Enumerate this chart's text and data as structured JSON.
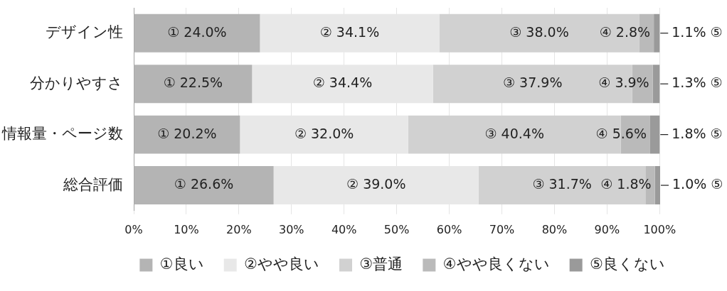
{
  "chart_data": {
    "type": "bar",
    "orientation": "horizontal",
    "stacked": true,
    "categories": [
      "デザイン性",
      "分かりやすさ",
      "情報量・ページ数",
      "総合評価"
    ],
    "series": [
      {
        "name": "①良い",
        "color": "#b4b4b4",
        "values": [
          24.0,
          22.5,
          20.2,
          26.6
        ],
        "value_labels": [
          "① 24.0%",
          "① 22.5%",
          "① 20.2%",
          "① 26.6%"
        ]
      },
      {
        "name": "②やや良い",
        "color": "#e8e8e8",
        "values": [
          34.1,
          34.4,
          32.0,
          39.0
        ],
        "value_labels": [
          "② 34.1%",
          "② 34.4%",
          "② 32.0%",
          "② 39.0%"
        ]
      },
      {
        "name": "③普通",
        "color": "#d1d1d1",
        "values": [
          38.0,
          37.9,
          40.4,
          31.7
        ],
        "value_labels": [
          "③ 38.0%",
          "③ 37.9%",
          "③ 40.4%",
          "③ 31.7%"
        ]
      },
      {
        "name": "④やや良くない",
        "color": "#bababa",
        "values": [
          2.8,
          3.9,
          5.6,
          1.8
        ],
        "value_labels": [
          "④ 2.8%",
          "④ 3.9%",
          "④ 5.6%",
          "④ 1.8%"
        ]
      },
      {
        "name": "⑤良くない",
        "color": "#9a9a9a",
        "values": [
          1.1,
          1.3,
          1.8,
          1.0
        ],
        "value_labels": [
          "1.1% ⑤",
          "1.3% ⑤",
          "1.8% ⑤",
          "1.0% ⑤"
        ]
      }
    ],
    "xlim": [
      0,
      100.1
    ],
    "xticks": [
      {
        "value": 0,
        "label": "0%"
      },
      {
        "value": 10,
        "label": "10%"
      },
      {
        "value": 20,
        "label": "20%"
      },
      {
        "value": 30,
        "label": "30%"
      },
      {
        "value": 40,
        "label": "40%"
      },
      {
        "value": 50,
        "label": "50%"
      },
      {
        "value": 60,
        "label": "60%"
      },
      {
        "value": 70,
        "label": "70%"
      },
      {
        "value": 80,
        "label": "80%"
      },
      {
        "value": 90,
        "label": "90%"
      },
      {
        "value": 100,
        "label": "100%"
      }
    ],
    "grid": "x",
    "legend": "bottom"
  }
}
